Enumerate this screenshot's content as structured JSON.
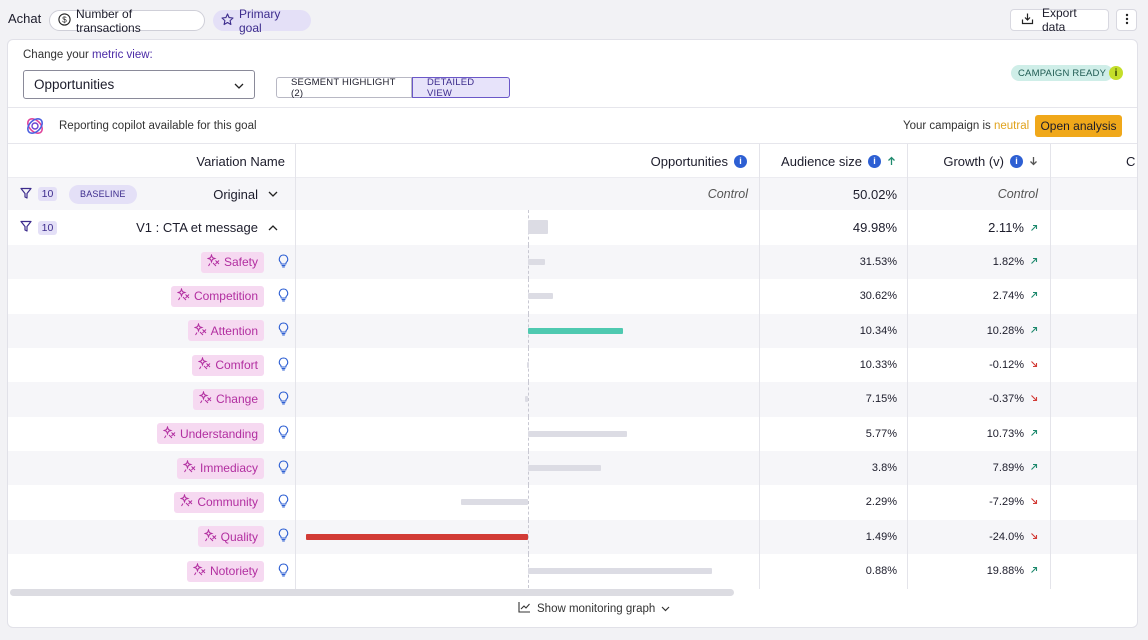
{
  "header": {
    "app_title": "Achat",
    "transactions_pill": "Number of transactions",
    "primary_goal_pill": "Primary goal",
    "export_label": "Export data"
  },
  "metric": {
    "prefix": "Change your ",
    "highlight": "metric view:",
    "selected": "Opportunities",
    "toggle_segment": "SEGMENT HIGHLIGHT (2)",
    "toggle_detailed": "DETAILED VIEW",
    "campaign_badge": "CAMPAIGN READY"
  },
  "copilot": {
    "text": "Reporting copilot available for this goal",
    "campaign_prefix": "Your campaign is ",
    "campaign_status": "neutral",
    "open_label": "Open analysis"
  },
  "table": {
    "col_variation": "Variation Name",
    "col_opportunities": "Opportunities",
    "col_audience": "Audience size",
    "col_growth": "Growth (v)",
    "col_cut": "C",
    "original": {
      "count": "10",
      "badge": "BASELINE",
      "name": "Original",
      "opportunities": "Control",
      "audience": "50.02%",
      "growth": "Control"
    },
    "v1": {
      "count": "10",
      "name": "V1 : CTA et message",
      "audience": "49.98%",
      "growth": "2.11%",
      "bar": 0.09
    },
    "segments": [
      {
        "label": "Safety",
        "audience": "31.53%",
        "growth": "1.82%",
        "dir": "up",
        "bar": 0.077
      },
      {
        "label": "Competition",
        "audience": "30.62%",
        "growth": "2.74%",
        "dir": "up",
        "bar": 0.114
      },
      {
        "label": "Attention",
        "audience": "10.34%",
        "growth": "10.28%",
        "dir": "up",
        "bar": 0.428
      },
      {
        "label": "Comfort",
        "audience": "10.33%",
        "growth": "-0.12%",
        "dir": "down",
        "bar": -0.005
      },
      {
        "label": "Change",
        "audience": "7.15%",
        "growth": "-0.37%",
        "dir": "down",
        "bar": -0.015
      },
      {
        "label": "Understanding",
        "audience": "5.77%",
        "growth": "10.73%",
        "dir": "up",
        "bar": 0.447
      },
      {
        "label": "Immediacy",
        "audience": "3.8%",
        "growth": "7.89%",
        "dir": "up",
        "bar": 0.329
      },
      {
        "label": "Community",
        "audience": "2.29%",
        "growth": "-7.29%",
        "dir": "down",
        "bar": -0.304
      },
      {
        "label": "Quality",
        "audience": "1.49%",
        "growth": "-24.0%",
        "dir": "down",
        "bar": -1.0
      },
      {
        "label": "Notoriety",
        "audience": "0.88%",
        "growth": "19.88%",
        "dir": "up",
        "bar": 0.828
      }
    ]
  },
  "footer": {
    "monitoring_label": "Show monitoring graph"
  },
  "colors": {
    "accent": "#3d2c8d",
    "positive_bar": "#4fc9b0",
    "negative_bar": "#d23b36",
    "neutral_bar": "#dcdce4",
    "tag_text": "#b22ea0",
    "up_arrow": "#1f8a6e",
    "down_arrow": "#d23b36",
    "open_button": "#f0a81a"
  },
  "icons": [
    "dollar-circle-icon",
    "star-icon",
    "export-icon",
    "more-vertical-icon",
    "chevron-down-icon",
    "info-icon",
    "copilot-logo-icon",
    "filter-icon",
    "chevron-up-icon",
    "sparkle-icon",
    "bulb-icon",
    "arrow-up-right-icon",
    "arrow-down-right-icon",
    "sort-up-icon",
    "sort-down-icon",
    "chart-line-icon"
  ]
}
